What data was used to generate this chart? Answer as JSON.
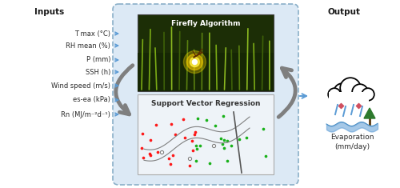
{
  "inputs_label": "Inputs",
  "output_label": "Output",
  "input_items": [
    "T max (°C)",
    "RH mean (%)",
    "P (mm)",
    "SSH (h)",
    "Wind speed (m/s)",
    "es-ea (kPa)",
    "Rn (MJ/m⁻²d⁻¹)"
  ],
  "evaporation_label": "Evaporation\n(mm/day)",
  "firefly_label": "Firefly Algorithm",
  "svr_label": "Support Vector Regression",
  "box_bg_color": "#dce9f5",
  "box_border_color": "#8aafc8",
  "arrow_color": "#5b9bd5",
  "curve_arrow_color": "#7f7f7f",
  "text_color": "#2a2a2a",
  "title_color": "#1a1a1a",
  "fig_w": 5.0,
  "fig_h": 2.35,
  "dpi": 100
}
